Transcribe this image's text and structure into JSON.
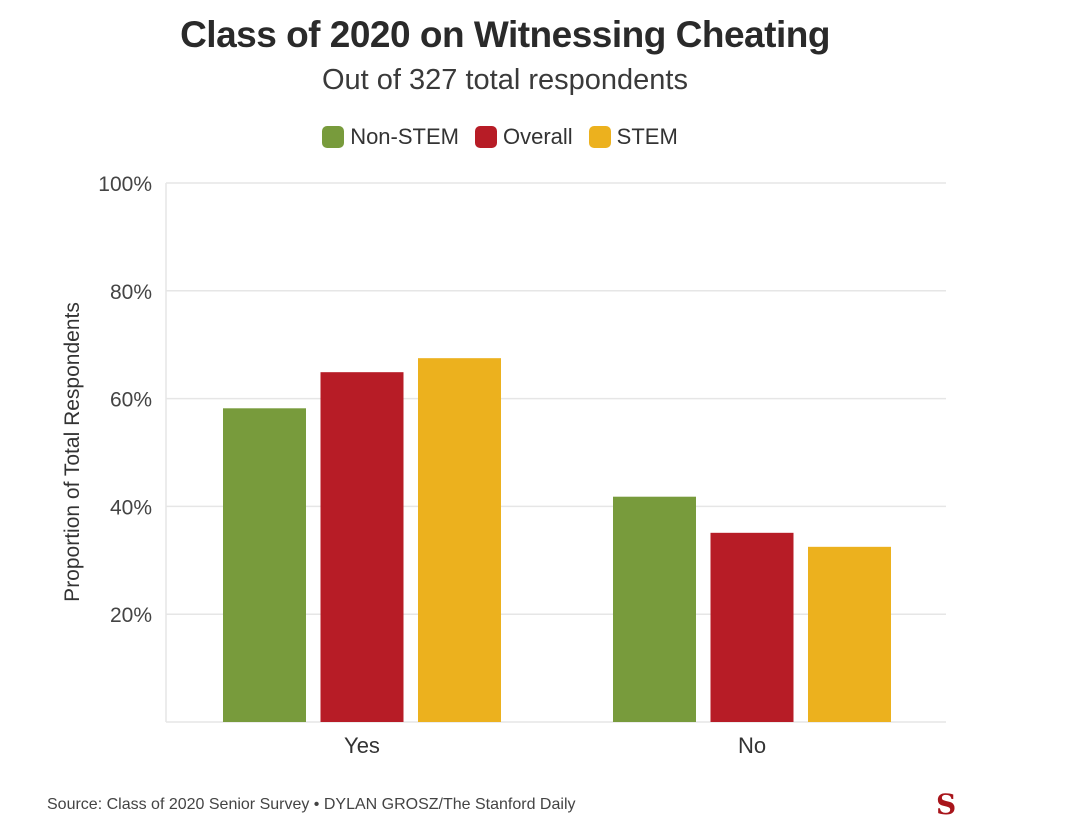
{
  "chart_data": {
    "type": "bar",
    "title": "Class of 2020 on Witnessing Cheating",
    "subtitle": "Out of 327 total respondents",
    "xlabel": "",
    "ylabel": "Proportion of Total Respondents",
    "categories": [
      "Yes",
      "No"
    ],
    "series": [
      {
        "name": "Non-STEM",
        "color": "#789b3c",
        "values": [
          58.2,
          41.8
        ]
      },
      {
        "name": "Overall",
        "color": "#b71c26",
        "values": [
          64.9,
          35.1
        ]
      },
      {
        "name": "STEM",
        "color": "#ecb11e",
        "values": [
          67.5,
          32.5
        ]
      }
    ],
    "ylim": [
      0,
      100
    ],
    "yticks": [
      20,
      40,
      60,
      80,
      100
    ],
    "ytick_labels": [
      "20%",
      "40%",
      "60%",
      "80%",
      "100%"
    ],
    "grid": true,
    "legend_position": "top"
  },
  "footer": {
    "source": "Source: Class of 2020 Senior Survey • DYLAN GROSZ/The Stanford Daily"
  },
  "logo": {
    "glyph": "S",
    "icon": "stanford-daily-logo-icon"
  }
}
